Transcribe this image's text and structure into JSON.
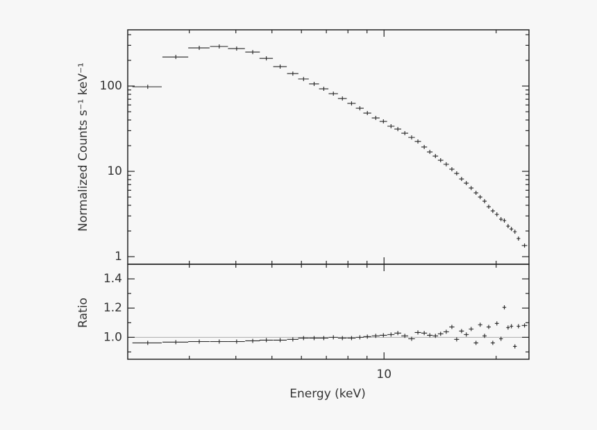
{
  "chart_data": [
    {
      "type": "errorbar",
      "ylabel": "Normalized Counts s⁻¹ keV⁻¹",
      "log_x": true,
      "log_y": true,
      "xlim": [
        2.05,
        24.5
      ],
      "xticks": [
        10
      ],
      "xminorticks": [
        3,
        4,
        5,
        6,
        7,
        8,
        9,
        20
      ],
      "ylim": [
        0.815,
        456
      ],
      "yticks": [
        1,
        10,
        100
      ],
      "yminorticks": [
        2,
        3,
        4,
        5,
        6,
        7,
        8,
        9,
        20,
        30,
        40,
        50,
        60,
        70,
        80,
        90,
        200,
        300,
        400
      ],
      "color": "#222222",
      "x": [
        2.32,
        2.76,
        3.19,
        3.61,
        4.02,
        4.44,
        4.83,
        5.26,
        5.69,
        6.08,
        6.49,
        6.89,
        7.31,
        7.73,
        8.18,
        8.61,
        9.02,
        9.5,
        9.96,
        10.44,
        10.89,
        11.37,
        11.86,
        12.33,
        12.82,
        13.27,
        13.74,
        14.19,
        14.69,
        15.21,
        15.67,
        16.15,
        16.63,
        17.14,
        17.66,
        18.12,
        18.62,
        19.1,
        19.59,
        20.09,
        20.61,
        21.04,
        21.53,
        21.98,
        22.46,
        22.96,
        23.84
      ],
      "xerr": [
        0.21,
        0.22,
        0.21,
        0.2,
        0.21,
        0.2,
        0.2,
        0.22,
        0.2,
        0.2,
        0.2,
        0.2,
        0.21,
        0.21,
        0.21,
        0.21,
        0.22,
        0.23,
        0.23,
        0.23,
        0.23,
        0.24,
        0.24,
        0.24,
        0.23,
        0.23,
        0.23,
        0.24,
        0.25,
        0.24,
        0.24,
        0.24,
        0.25,
        0.25,
        0.25,
        0.24,
        0.24,
        0.25,
        0.25,
        0.25,
        0.24,
        0.24,
        0.23,
        0.24,
        0.25,
        0.25,
        0.4
      ],
      "values": [
        98,
        219,
        280,
        291,
        275,
        250,
        211,
        169,
        140,
        121,
        106,
        92.8,
        81.4,
        71.4,
        62.6,
        54.9,
        48.2,
        42.3,
        38.5,
        33.8,
        31.3,
        28.0,
        25.0,
        22.4,
        19.3,
        16.9,
        15.1,
        13.5,
        12.1,
        10.6,
        9.46,
        8.14,
        7.28,
        6.38,
        5.6,
        5.0,
        4.47,
        3.85,
        3.44,
        3.13,
        2.75,
        2.65,
        2.28,
        2.11,
        1.96,
        1.63,
        1.35
      ]
    },
    {
      "type": "errorbar",
      "ylabel": "Ratio",
      "xlabel": "Energy (keV)",
      "log_x": true,
      "log_y": false,
      "xlim": [
        2.05,
        24.5
      ],
      "xticks": [
        10
      ],
      "xminorticks": [
        3,
        4,
        5,
        6,
        7,
        8,
        9,
        20
      ],
      "ylim": [
        0.85,
        1.5
      ],
      "yticks": [
        {
          "value": 1,
          "label": "1.0"
        },
        1.2,
        1.4
      ],
      "yminorticks": [
        0.9,
        1.1,
        1.3
      ],
      "reference_line": 1,
      "reference_color": "#aaaaaa",
      "color": "#222222",
      "x": [
        2.32,
        2.76,
        3.19,
        3.61,
        4.02,
        4.44,
        4.83,
        5.26,
        5.69,
        6.08,
        6.49,
        6.89,
        7.31,
        7.73,
        8.18,
        8.61,
        9.02,
        9.5,
        9.96,
        10.44,
        10.89,
        11.37,
        11.86,
        12.33,
        12.82,
        13.27,
        13.74,
        14.19,
        14.69,
        15.21,
        15.67,
        16.15,
        16.63,
        17.14,
        17.66,
        18.12,
        18.62,
        19.1,
        19.59,
        20.09,
        20.61,
        21.04,
        21.53,
        21.98,
        22.46,
        22.96,
        23.84
      ],
      "xerr": [
        0.21,
        0.22,
        0.21,
        0.2,
        0.21,
        0.2,
        0.2,
        0.22,
        0.2,
        0.2,
        0.2,
        0.2,
        0.21,
        0.21,
        0.21,
        0.21,
        0.22,
        0.23,
        0.23,
        0.23,
        0.23,
        0.24,
        0.24,
        0.24,
        0.23,
        0.23,
        0.23,
        0.24,
        0.25,
        0.24,
        0.24,
        0.24,
        0.25,
        0.25,
        0.25,
        0.24,
        0.24,
        0.25,
        0.25,
        0.25,
        0.24,
        0.24,
        0.23,
        0.24,
        0.25,
        0.25,
        0.4
      ],
      "values": [
        0.962,
        0.967,
        0.971,
        0.971,
        0.971,
        0.976,
        0.981,
        0.981,
        0.986,
        0.995,
        0.995,
        0.995,
        1.0,
        0.995,
        0.995,
        1.0,
        1.005,
        1.01,
        1.014,
        1.019,
        1.029,
        1.01,
        0.99,
        1.033,
        1.029,
        1.014,
        1.01,
        1.024,
        1.038,
        1.071,
        0.986,
        1.043,
        1.019,
        1.057,
        0.962,
        1.086,
        1.01,
        1.071,
        0.962,
        1.095,
        0.99,
        1.205,
        1.067,
        1.076,
        0.938,
        1.076,
        1.081
      ]
    }
  ]
}
